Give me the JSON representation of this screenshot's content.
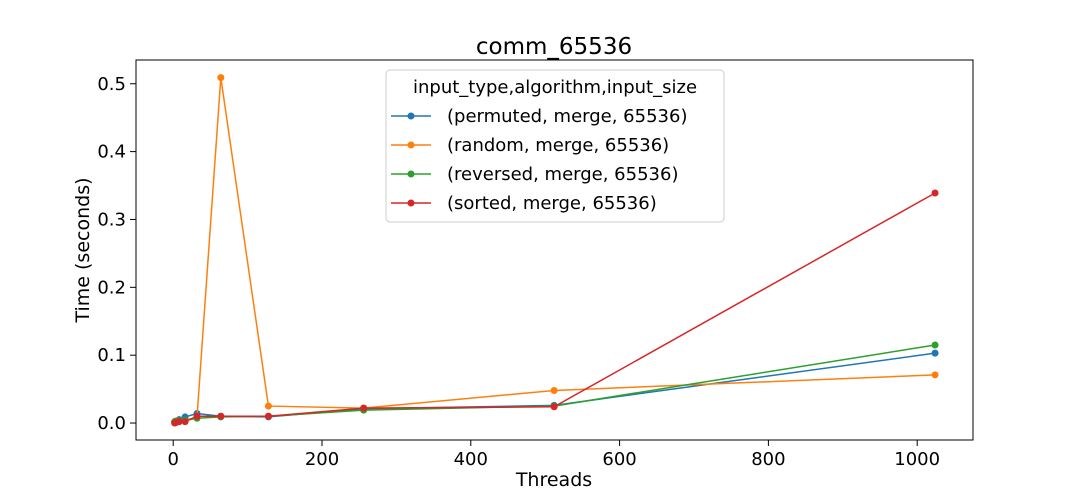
{
  "chart_data": {
    "type": "line",
    "title": "comm_65536",
    "xlabel": "Threads",
    "ylabel": "Time (seconds)",
    "xlim": [
      -50,
      1075
    ],
    "ylim": [
      -0.025,
      0.535
    ],
    "xticks": [
      0,
      200,
      400,
      600,
      800,
      1000
    ],
    "xtick_labels": [
      "0",
      "200",
      "400",
      "600",
      "800",
      "1000"
    ],
    "yticks": [
      0.0,
      0.1,
      0.2,
      0.3,
      0.4,
      0.5
    ],
    "ytick_labels": [
      "0.0",
      "0.1",
      "0.2",
      "0.3",
      "0.4",
      "0.5"
    ],
    "grid": false,
    "legend": {
      "title": "input_type,algorithm,input_size",
      "placement": "top-center"
    },
    "x": [
      2,
      4,
      8,
      16,
      32,
      64,
      128,
      256,
      512,
      1024
    ],
    "series": [
      {
        "name": "(permuted, merge, 65536)",
        "color": "#1f77b4",
        "values": [
          0.001,
          0.003,
          0.005,
          0.009,
          0.014,
          0.01,
          0.009,
          0.021,
          0.026,
          0.103
        ]
      },
      {
        "name": "(random, merge, 65536)",
        "color": "#ff7f0e",
        "values": [
          0.002,
          0.003,
          0.003,
          0.004,
          0.009,
          0.509,
          0.025,
          0.022,
          0.048,
          0.071
        ]
      },
      {
        "name": "(reversed, merge, 65536)",
        "color": "#2ca02c",
        "values": [
          0.002,
          0.002,
          0.003,
          0.004,
          0.007,
          0.009,
          0.01,
          0.019,
          0.025,
          0.115
        ]
      },
      {
        "name": "(sorted, merge, 65536)",
        "color": "#d62728",
        "values": [
          0.0,
          0.001,
          0.002,
          0.002,
          0.01,
          0.01,
          0.01,
          0.022,
          0.024,
          0.339
        ]
      }
    ]
  }
}
